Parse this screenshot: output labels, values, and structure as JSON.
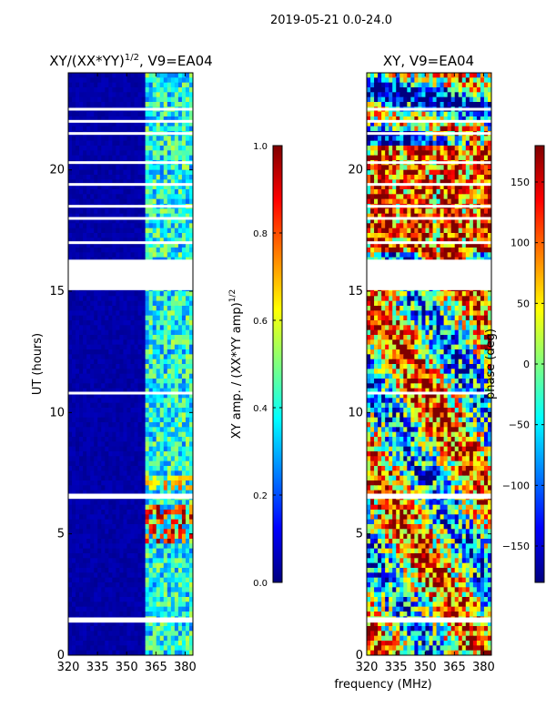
{
  "figure": {
    "suptitle": "2019-05-21 0.0-24.0",
    "shared_xlabel": "frequency (MHz)"
  },
  "colormap": {
    "name": "jet",
    "stops": [
      "#00007f",
      "#0000ff",
      "#007fff",
      "#00ffff",
      "#7fff7f",
      "#ffff00",
      "#ff7f00",
      "#ff0000",
      "#7f0000"
    ]
  },
  "chart_data": [
    {
      "type": "heatmap",
      "title_base": "XY/(XX*YY)",
      "title_sup": "1/2",
      "title_suffix": ", V9=EA04",
      "xlabel": "",
      "ylabel": "UT (hours)",
      "xlim": [
        320,
        384
      ],
      "ylim": [
        0,
        24
      ],
      "xticks": [
        320,
        335,
        350,
        365,
        380
      ],
      "yticks": [
        0,
        5,
        10,
        15,
        20
      ],
      "rfi_band_mhz": [
        360,
        384
      ],
      "quiet_value": 0.02,
      "data_gap_hours": [
        16.3,
        15.1
      ],
      "flagged_rows_hours": [
        1.5,
        1.4,
        6.5,
        6.6,
        10.8,
        15.1,
        17.0,
        18.0,
        18.5,
        19.4,
        20.3,
        22.5,
        22.0,
        21.5
      ],
      "colorbar": {
        "label_base": "XY amp. / (XX*YY amp)",
        "label_sup": "1/2",
        "vmin": 0.0,
        "vmax": 1.0,
        "ticks": [
          "0.0",
          "0.2",
          "0.4",
          "0.6",
          "0.8",
          "1.0"
        ]
      }
    },
    {
      "type": "heatmap",
      "title_base": "XY, V9=EA04",
      "xlabel": "",
      "ylabel": "",
      "xlim": [
        320,
        384
      ],
      "ylim": [
        0,
        24
      ],
      "xticks": [
        320,
        335,
        350,
        365,
        380
      ],
      "yticks": [
        0,
        5,
        10,
        15,
        20
      ],
      "data_gap_hours": [
        16.3,
        15.1
      ],
      "flagged_rows_hours": [
        1.5,
        1.4,
        6.5,
        6.6,
        10.8,
        15.1,
        17.0,
        18.0,
        18.5,
        19.4,
        20.3,
        22.5,
        22.0,
        21.5
      ],
      "colorbar": {
        "label": "phase (deg)",
        "vmin": -180,
        "vmax": 180,
        "ticks": [
          "−150",
          "−100",
          "−50",
          "0",
          "50",
          "100",
          "150"
        ]
      }
    }
  ]
}
